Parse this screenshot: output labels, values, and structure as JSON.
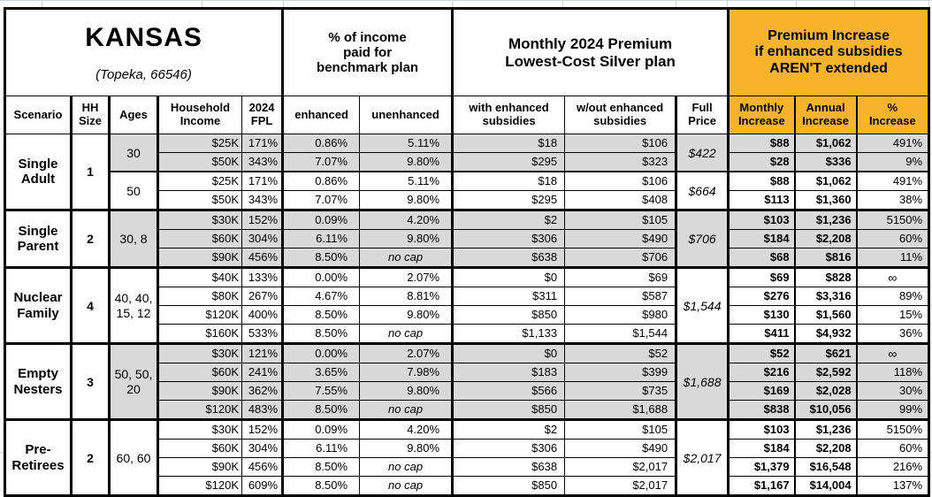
{
  "title": "KANSAS",
  "subtitle": "(Topeka, 66546)",
  "colors": {
    "accent_orange": "#F7B32B",
    "row_shade_gray": "#D9D9D9",
    "grid_faint": "#ccd3da",
    "border_black": "#000000"
  },
  "group_headers": {
    "pct_income": "% of income\npaid for\nbenchmark plan",
    "premium": "Monthly 2024 Premium\nLowest-Cost Silver plan",
    "increase": "Premium Increase\nif enhanced subsidies\nAREN'T extended"
  },
  "columns": {
    "scenario": "Scenario",
    "hh_size": "HH\nSize",
    "ages": "Ages",
    "income": "Household\nIncome",
    "fpl": "2024\nFPL",
    "enhanced": "enhanced",
    "unenhanced": "unenhanced",
    "with_sub": "with enhanced\nsubsidies",
    "without_sub": "w/out enhanced\nsubsidies",
    "full_price": "Full\nPrice",
    "monthly": "Monthly\nIncrease",
    "annual": "Annual\nIncrease",
    "pct": "%\nIncrease"
  },
  "groups": [
    {
      "scenario": "Single\nAdult",
      "hh_size": "1",
      "subgroups": [
        {
          "ages": "30",
          "shaded": true,
          "full_price": "$422",
          "rows": [
            {
              "income": "$25K",
              "fpl": "171%",
              "enhanced": "0.86%",
              "unenhanced": "5.11%",
              "with_sub": "$18",
              "without_sub": "$106",
              "monthly": "$88",
              "annual": "$1,062",
              "pct": "491%"
            },
            {
              "income": "$50K",
              "fpl": "343%",
              "enhanced": "7.07%",
              "unenhanced": "9.80%",
              "with_sub": "$295",
              "without_sub": "$323",
              "monthly": "$28",
              "annual": "$336",
              "pct": "9%"
            }
          ]
        },
        {
          "ages": "50",
          "shaded": false,
          "full_price": "$664",
          "rows": [
            {
              "income": "$25K",
              "fpl": "171%",
              "enhanced": "0.86%",
              "unenhanced": "5.11%",
              "with_sub": "$18",
              "without_sub": "$106",
              "monthly": "$88",
              "annual": "$1,062",
              "pct": "491%"
            },
            {
              "income": "$50K",
              "fpl": "343%",
              "enhanced": "7.07%",
              "unenhanced": "9.80%",
              "with_sub": "$295",
              "without_sub": "$408",
              "monthly": "$113",
              "annual": "$1,360",
              "pct": "38%"
            }
          ]
        }
      ]
    },
    {
      "scenario": "Single\nParent",
      "hh_size": "2",
      "subgroups": [
        {
          "ages": "30, 8",
          "shaded": true,
          "full_price": "$706",
          "rows": [
            {
              "income": "$30K",
              "fpl": "152%",
              "enhanced": "0.09%",
              "unenhanced": "4.20%",
              "with_sub": "$2",
              "without_sub": "$105",
              "monthly": "$103",
              "annual": "$1,236",
              "pct": "5150%"
            },
            {
              "income": "$60K",
              "fpl": "304%",
              "enhanced": "6.11%",
              "unenhanced": "9.80%",
              "with_sub": "$306",
              "without_sub": "$490",
              "monthly": "$184",
              "annual": "$2,208",
              "pct": "60%"
            },
            {
              "income": "$90K",
              "fpl": "456%",
              "enhanced": "8.50%",
              "unenhanced": "no cap",
              "with_sub": "$638",
              "without_sub": "$706",
              "monthly": "$68",
              "annual": "$816",
              "pct": "11%"
            }
          ]
        }
      ]
    },
    {
      "scenario": "Nuclear\nFamily",
      "hh_size": "4",
      "subgroups": [
        {
          "ages": "40, 40,\n15, 12",
          "shaded": false,
          "full_price": "$1,544",
          "rows": [
            {
              "income": "$40K",
              "fpl": "133%",
              "enhanced": "0.00%",
              "unenhanced": "2.07%",
              "with_sub": "$0",
              "without_sub": "$69",
              "monthly": "$69",
              "annual": "$828",
              "pct": "∞"
            },
            {
              "income": "$80K",
              "fpl": "267%",
              "enhanced": "4.67%",
              "unenhanced": "8.81%",
              "with_sub": "$311",
              "without_sub": "$587",
              "monthly": "$276",
              "annual": "$3,316",
              "pct": "89%"
            },
            {
              "income": "$120K",
              "fpl": "400%",
              "enhanced": "8.50%",
              "unenhanced": "9.80%",
              "with_sub": "$850",
              "without_sub": "$980",
              "monthly": "$130",
              "annual": "$1,560",
              "pct": "15%"
            },
            {
              "income": "$160K",
              "fpl": "533%",
              "enhanced": "8.50%",
              "unenhanced": "no cap",
              "with_sub": "$1,133",
              "without_sub": "$1,544",
              "monthly": "$411",
              "annual": "$4,932",
              "pct": "36%"
            }
          ]
        }
      ]
    },
    {
      "scenario": "Empty\nNesters",
      "hh_size": "3",
      "subgroups": [
        {
          "ages": "50, 50,\n20",
          "shaded": true,
          "full_price": "$1,688",
          "rows": [
            {
              "income": "$30K",
              "fpl": "121%",
              "enhanced": "0.00%",
              "unenhanced": "2.07%",
              "with_sub": "$0",
              "without_sub": "$52",
              "monthly": "$52",
              "annual": "$621",
              "pct": "∞"
            },
            {
              "income": "$60K",
              "fpl": "241%",
              "enhanced": "3.65%",
              "unenhanced": "7.98%",
              "with_sub": "$183",
              "without_sub": "$399",
              "monthly": "$216",
              "annual": "$2,592",
              "pct": "118%"
            },
            {
              "income": "$90K",
              "fpl": "362%",
              "enhanced": "7.55%",
              "unenhanced": "9.80%",
              "with_sub": "$566",
              "without_sub": "$735",
              "monthly": "$169",
              "annual": "$2,028",
              "pct": "30%"
            },
            {
              "income": "$120K",
              "fpl": "483%",
              "enhanced": "8.50%",
              "unenhanced": "no cap",
              "with_sub": "$850",
              "without_sub": "$1,688",
              "monthly": "$838",
              "annual": "$10,056",
              "pct": "99%"
            }
          ]
        }
      ]
    },
    {
      "scenario": "Pre-\nRetirees",
      "hh_size": "2",
      "subgroups": [
        {
          "ages": "60, 60",
          "shaded": false,
          "full_price": "$2,017",
          "rows": [
            {
              "income": "$30K",
              "fpl": "152%",
              "enhanced": "0.09%",
              "unenhanced": "4.20%",
              "with_sub": "$2",
              "without_sub": "$105",
              "monthly": "$103",
              "annual": "$1,236",
              "pct": "5150%"
            },
            {
              "income": "$60K",
              "fpl": "304%",
              "enhanced": "6.11%",
              "unenhanced": "9.80%",
              "with_sub": "$306",
              "without_sub": "$490",
              "monthly": "$184",
              "annual": "$2,208",
              "pct": "60%"
            },
            {
              "income": "$90K",
              "fpl": "456%",
              "enhanced": "8.50%",
              "unenhanced": "no cap",
              "with_sub": "$638",
              "without_sub": "$2,017",
              "monthly": "$1,379",
              "annual": "$16,548",
              "pct": "216%"
            },
            {
              "income": "$120K",
              "fpl": "609%",
              "enhanced": "8.50%",
              "unenhanced": "no cap",
              "with_sub": "$850",
              "without_sub": "$2,017",
              "monthly": "$1,167",
              "annual": "$14,004",
              "pct": "137%"
            }
          ]
        }
      ]
    }
  ]
}
